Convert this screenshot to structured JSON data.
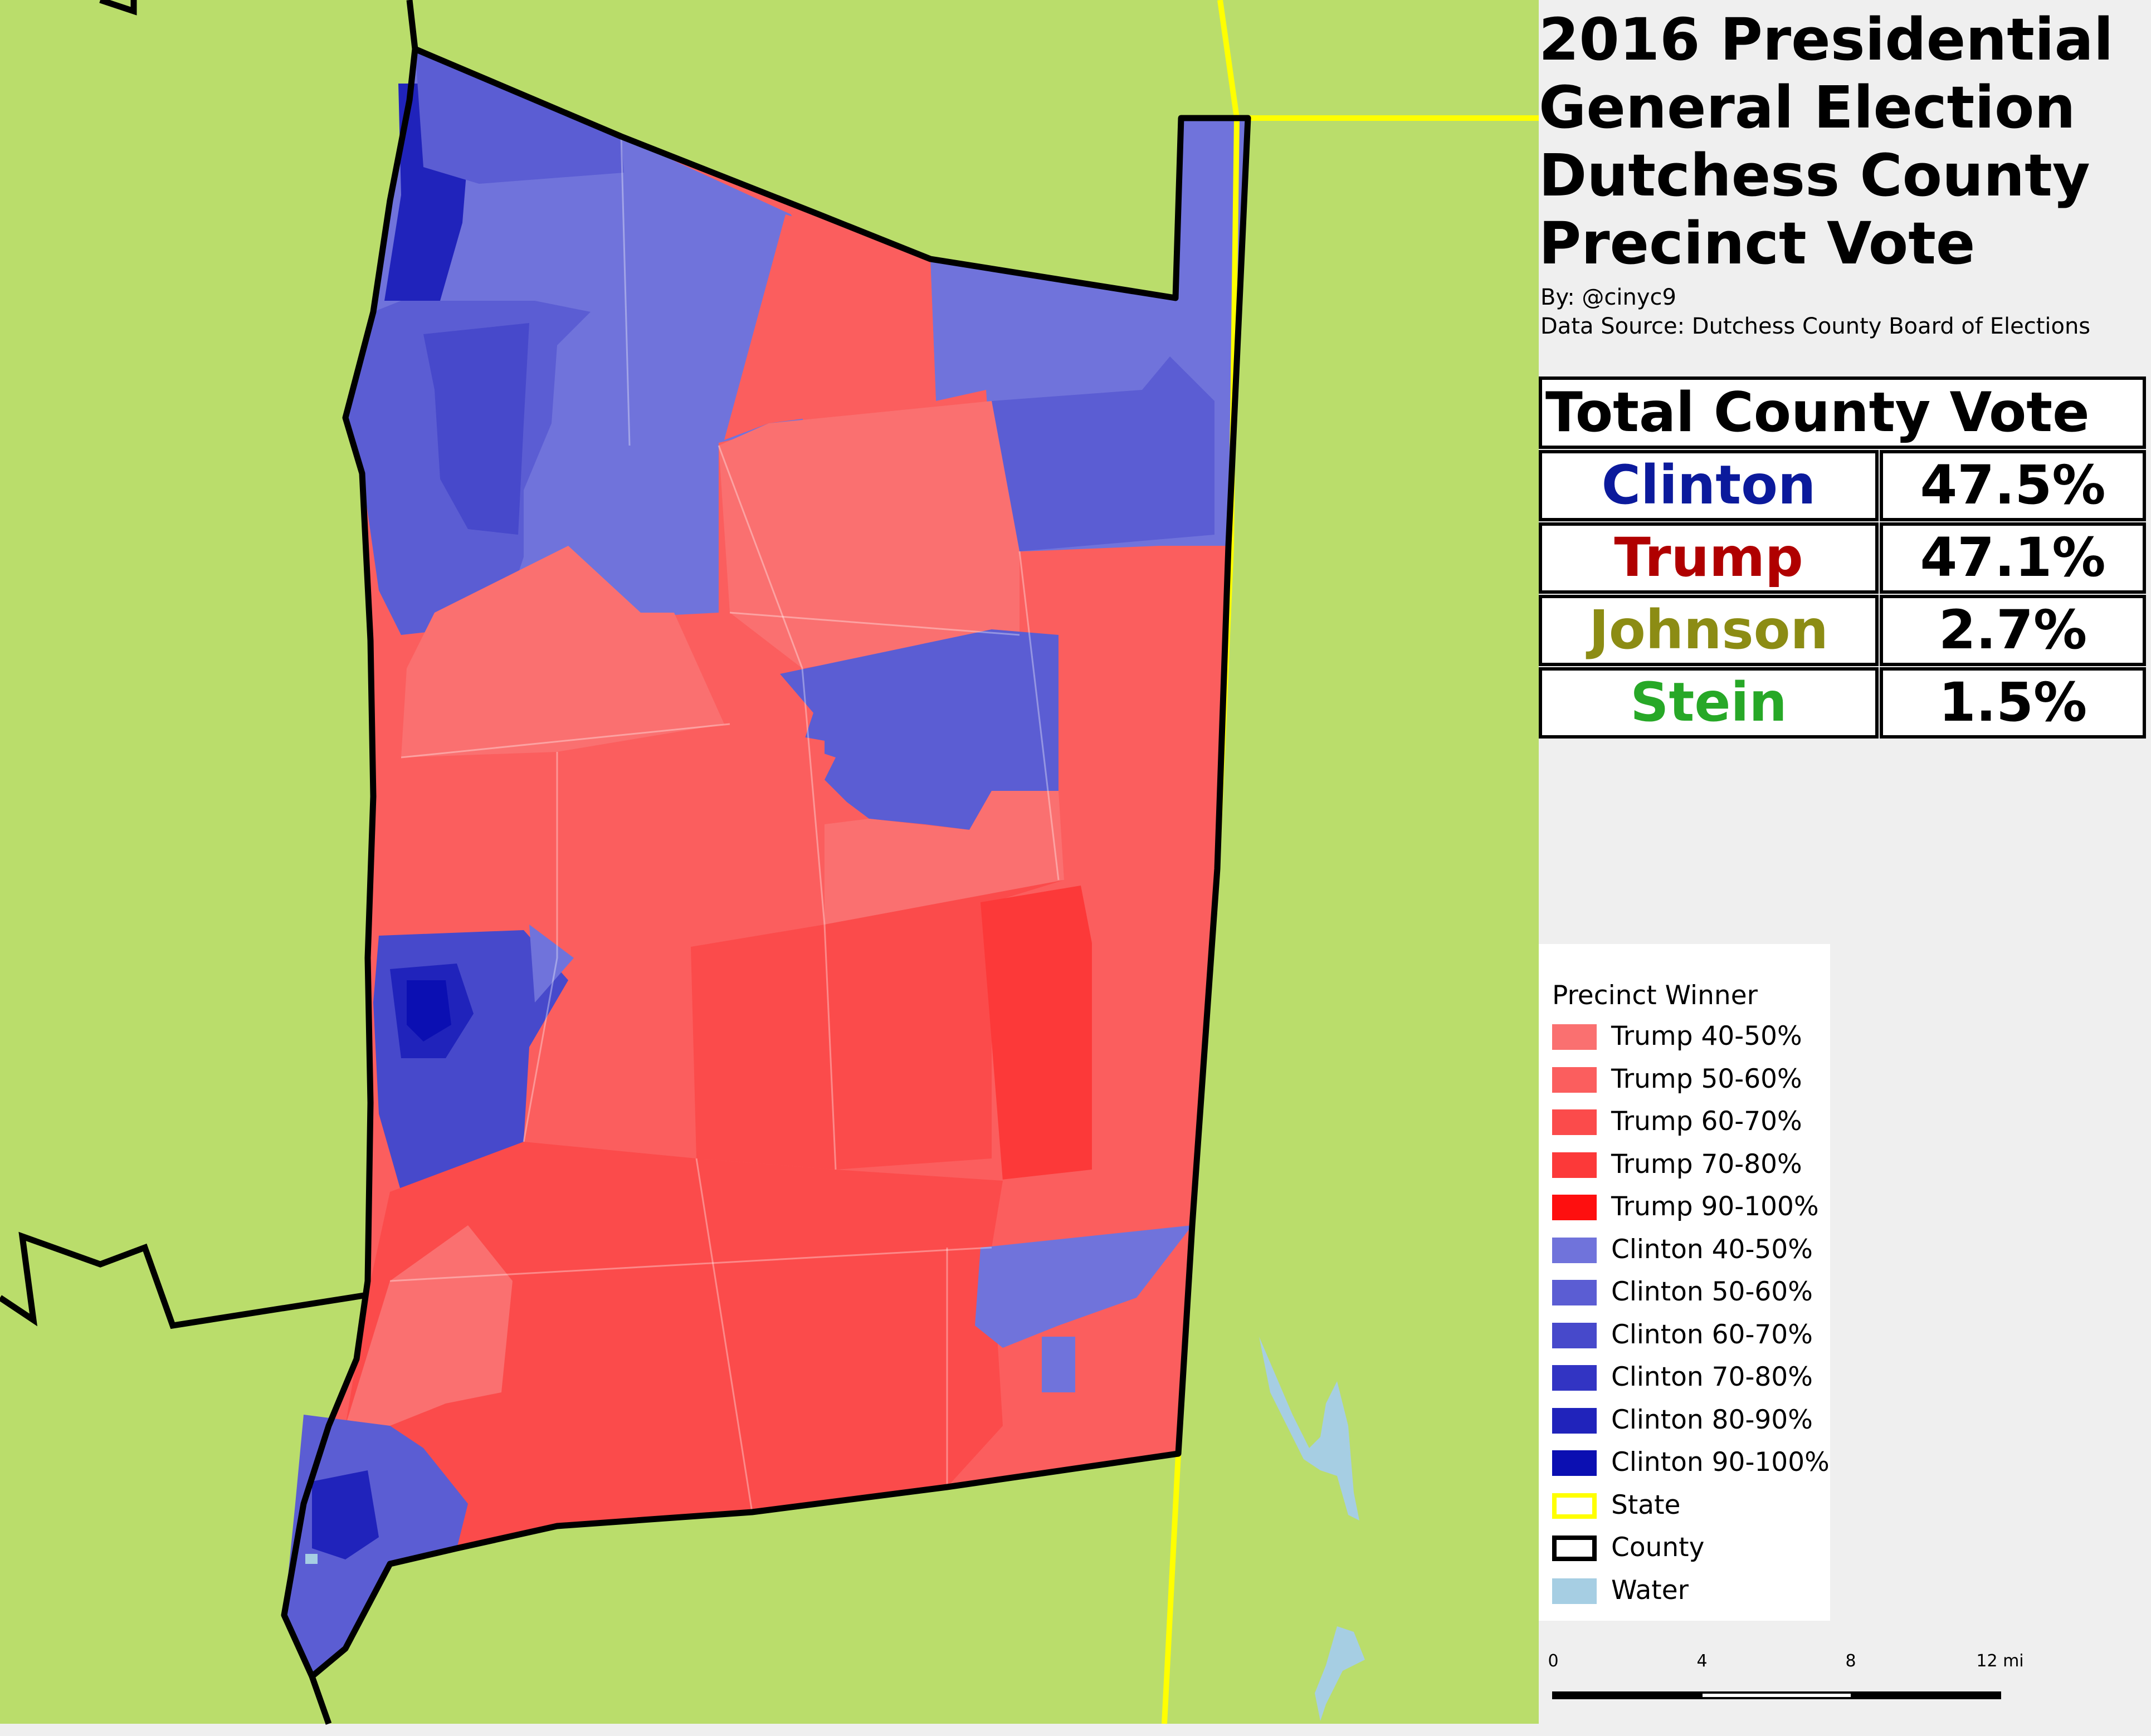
{
  "title": {
    "line1": "2016 Presidential",
    "line2": "General Election",
    "line3": "Dutchess County",
    "line4": "Precinct Vote"
  },
  "byline": {
    "author": "By: @cinyc9",
    "source": "Data Source: Dutchess County Board of Elections"
  },
  "county_vote": {
    "header": "Total County Vote",
    "rows": [
      {
        "candidate": "Clinton",
        "percent": "47.5%",
        "color": "#0b1a9c"
      },
      {
        "candidate": "Trump",
        "percent": "47.1%",
        "color": "#b00000"
      },
      {
        "candidate": "Johnson",
        "percent": "2.7%",
        "color": "#8c8c14"
      },
      {
        "candidate": "Stein",
        "percent": "1.5%",
        "color": "#27a827"
      }
    ]
  },
  "legend": {
    "title": "Precinct Winner",
    "items": [
      {
        "label": "Trump 40-50%",
        "color": "#fa7070"
      },
      {
        "label": "Trump 50-60%",
        "color": "#fb5e5e"
      },
      {
        "label": "Trump 60-70%",
        "color": "#fb4b4b"
      },
      {
        "label": "Trump 70-80%",
        "color": "#fc3939"
      },
      {
        "label": "Trump 90-100%",
        "color": "#fe0f0f"
      },
      {
        "label": "Clinton 40-50%",
        "color": "#7073db"
      },
      {
        "label": "Clinton 50-60%",
        "color": "#5b5dd3"
      },
      {
        "label": "Clinton 60-70%",
        "color": "#4749cb"
      },
      {
        "label": "Clinton 70-80%",
        "color": "#3234c3"
      },
      {
        "label": "Clinton 80-90%",
        "color": "#2023bb"
      },
      {
        "label": "Clinton 90-100%",
        "color": "#0b0fb2"
      },
      {
        "label": "State",
        "color": "#ffffff",
        "border": "#ffff00"
      },
      {
        "label": "County",
        "color": "#ffffff",
        "border": "#000000"
      },
      {
        "label": "Water",
        "color": "#a6cee3"
      }
    ]
  },
  "scale": {
    "ticks": [
      "0",
      "4",
      "8",
      "12 mi"
    ]
  },
  "map_colors": {
    "background_land": "#badd6b",
    "panel": "#efefef",
    "water": "#a6cee3",
    "state_line": "#ffff00",
    "county_line": "#000000"
  }
}
